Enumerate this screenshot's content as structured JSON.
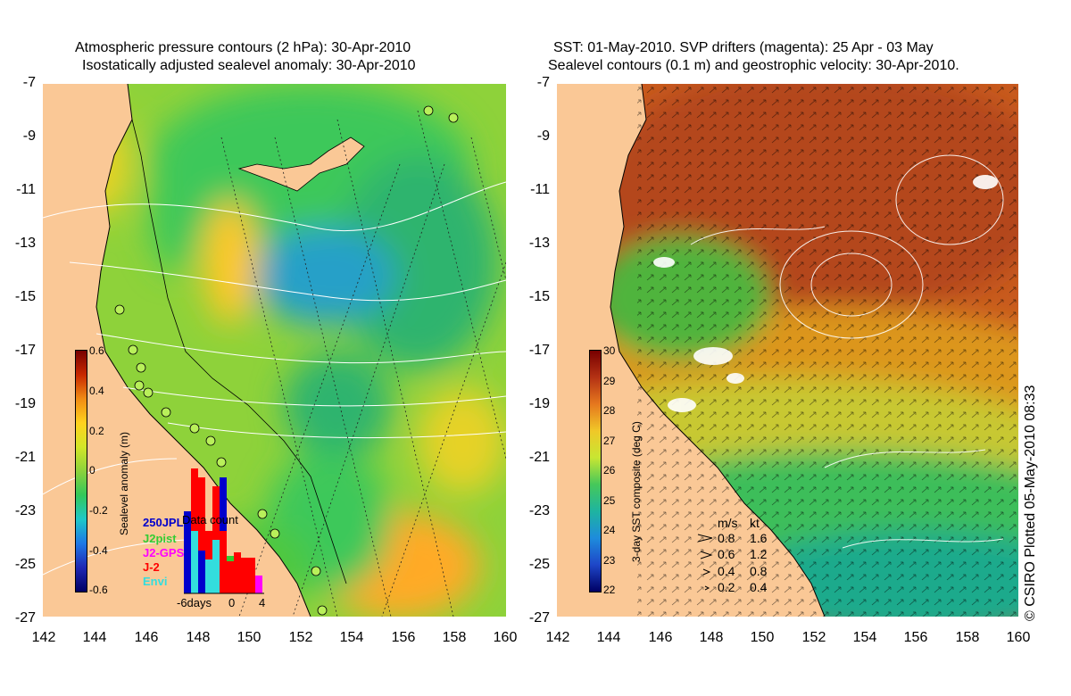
{
  "left_title": {
    "line1": "Atmospheric pressure contours (2 hPa): 30-Apr-2010",
    "line2": "Isostatically adjusted sealevel anomaly: 30-Apr-2010"
  },
  "right_title": {
    "line1": "SST: 01-May-2010. SVP drifters (magenta): 25 Apr - 03 May",
    "line2": "Sealevel contours (0.1 m) and geostrophic velocity: 30-Apr-2010."
  },
  "y_ticks": [
    "-7",
    "-9",
    "-11",
    "-13",
    "-15",
    "-17",
    "-19",
    "-21",
    "-23",
    "-25",
    "-27"
  ],
  "x_ticks": [
    "142",
    "144",
    "146",
    "148",
    "150",
    "152",
    "154",
    "156",
    "158",
    "160"
  ],
  "left_colorbar": {
    "title": "Sealevel anomaly (m)",
    "labels": [
      "0.6",
      "0.4",
      "0.2",
      "0",
      "-0.2",
      "-0.4",
      "-0.6"
    ]
  },
  "right_colorbar": {
    "title": "3-day SST composite (deg C)",
    "labels": [
      "30",
      "29",
      "28",
      "27",
      "26",
      "25",
      "24",
      "23",
      "22"
    ]
  },
  "data_count": {
    "title": "Data count",
    "legend": [
      {
        "label": "250JPL",
        "color": "#0000cc"
      },
      {
        "label": "J2pist",
        "color": "#33cc33"
      },
      {
        "label": "J2-GPS",
        "color": "#ff00ff"
      },
      {
        "label": "J-2",
        "color": "#ff0000"
      },
      {
        "label": "Envi",
        "color": "#33dddd"
      }
    ],
    "axis": [
      "-6days",
      "0",
      "4"
    ]
  },
  "velocity_key": {
    "header_ms": "m/s",
    "header_kt": "kt",
    "rows": [
      {
        "ms": "0.8",
        "kt": "1.6"
      },
      {
        "ms": "0.6",
        "kt": "1.2"
      },
      {
        "ms": "0.4",
        "kt": "0.8"
      },
      {
        "ms": "0.2",
        "kt": "0.4"
      }
    ]
  },
  "credit": "© CSIRO Plotted 05-May-2010 08:33",
  "colors": {
    "land": "#fac896",
    "sla_low": "#1e50c8",
    "sla_mid": "#50c83c",
    "sla_high": "#ffd21e",
    "sst_warm": "#b4461e",
    "sst_cool": "#1eb45a"
  }
}
